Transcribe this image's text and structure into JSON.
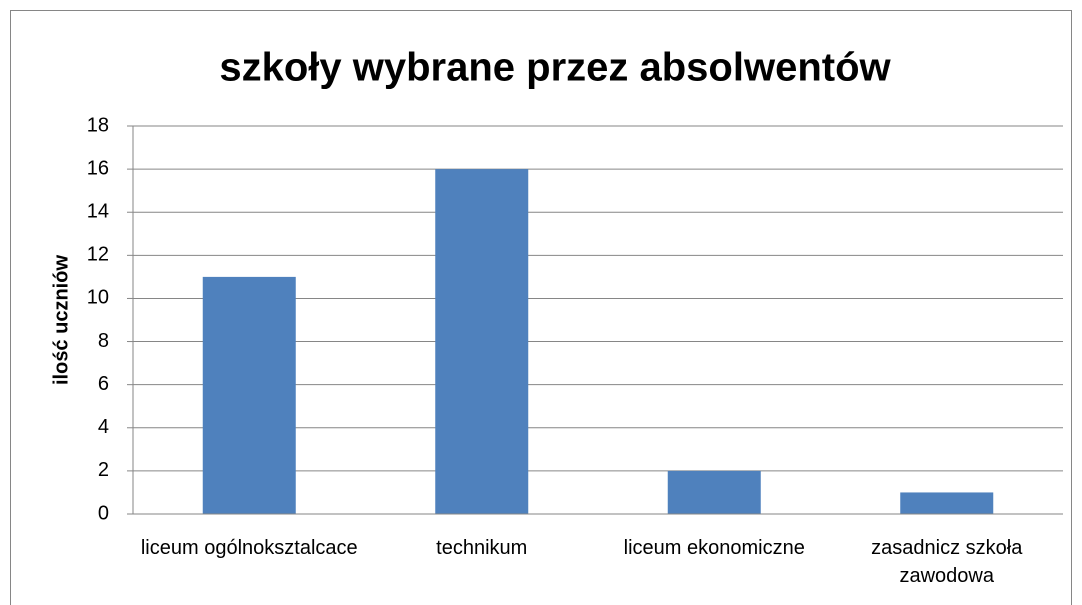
{
  "chart_data": {
    "type": "bar",
    "title": "szkoły wybrane przez absolwentów",
    "y_label": "ilość uczniów",
    "categories": [
      "liceum ogólnoksztalcace",
      "technikum",
      "liceum ekonomiczne",
      "zasadnicz szkoła zawodowa"
    ],
    "values": [
      11,
      16,
      2,
      1
    ],
    "color": "#4f81bd",
    "ylim": [
      0,
      18
    ],
    "yticks": [
      0,
      2,
      4,
      6,
      8,
      10,
      12,
      14,
      16,
      18
    ],
    "grid": true
  }
}
